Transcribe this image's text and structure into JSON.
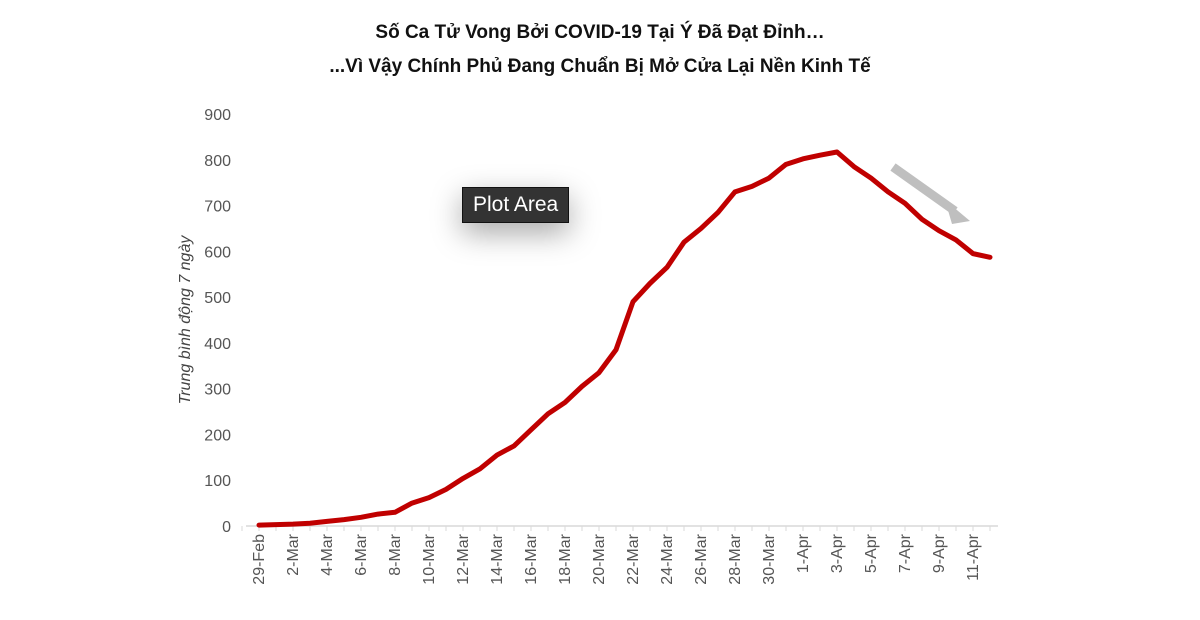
{
  "chart_data": {
    "type": "line",
    "title": "Số Ca Tử Vong Bởi COVID-19 Tại Ý Đã Đạt Đỉnh…",
    "subtitle": "...Vì Vậy Chính Phủ Đang Chuẩn Bị Mở Cửa Lại Nền Kinh Tế",
    "xlabel": "",
    "ylabel": "Trung bình động 7 ngày",
    "ylim": [
      0,
      900
    ],
    "yticks": [
      0,
      100,
      200,
      300,
      400,
      500,
      600,
      700,
      800,
      900
    ],
    "xtick_labels": [
      "29-Feb",
      "2-Mar",
      "4-Mar",
      "6-Mar",
      "8-Mar",
      "10-Mar",
      "12-Mar",
      "14-Mar",
      "16-Mar",
      "18-Mar",
      "20-Mar",
      "22-Mar",
      "24-Mar",
      "26-Mar",
      "28-Mar",
      "30-Mar",
      "1-Apr",
      "3-Apr",
      "5-Apr",
      "7-Apr",
      "9-Apr",
      "11-Apr"
    ],
    "x_start": "29-Feb",
    "x_end": "12-Apr",
    "grid": false,
    "line_color": "#c00000",
    "arrow_color": "#bfbfbf",
    "values": [
      2,
      3,
      4,
      6,
      10,
      14,
      19,
      26,
      30,
      50,
      62,
      80,
      104,
      125,
      155,
      175,
      210,
      245,
      270,
      305,
      335,
      385,
      490,
      530,
      565,
      620,
      650,
      685,
      730,
      742,
      760,
      790,
      802,
      810,
      817,
      785,
      760,
      730,
      705,
      670,
      645,
      625,
      595,
      587
    ]
  },
  "tooltip": "Plot Area"
}
